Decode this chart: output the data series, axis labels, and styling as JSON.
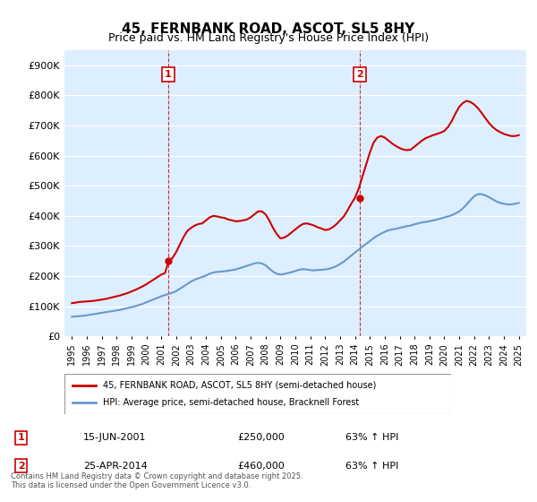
{
  "title": "45, FERNBANK ROAD, ASCOT, SL5 8HY",
  "subtitle": "Price paid vs. HM Land Registry's House Price Index (HPI)",
  "legend_label_red": "45, FERNBANK ROAD, ASCOT, SL5 8HY (semi-detached house)",
  "legend_label_blue": "HPI: Average price, semi-detached house, Bracknell Forest",
  "footnote": "Contains HM Land Registry data © Crown copyright and database right 2025.\nThis data is licensed under the Open Government Licence v3.0.",
  "transaction1_label": "1",
  "transaction1_date": "15-JUN-2001",
  "transaction1_price": "£250,000",
  "transaction1_hpi": "63% ↑ HPI",
  "transaction2_label": "2",
  "transaction2_date": "25-APR-2014",
  "transaction2_price": "£460,000",
  "transaction2_hpi": "63% ↑ HPI",
  "red_color": "#cc0000",
  "blue_color": "#6699cc",
  "dashed_line_color": "#cc0000",
  "background_color": "#ffffff",
  "plot_bg_color": "#ddeeff",
  "grid_color": "#ffffff",
  "ylim": [
    0,
    950000
  ],
  "yticks": [
    0,
    100000,
    200000,
    300000,
    400000,
    500000,
    600000,
    700000,
    800000,
    900000
  ],
  "ytick_labels": [
    "£0",
    "£100K",
    "£200K",
    "£300K",
    "£400K",
    "£500K",
    "£600K",
    "£700K",
    "£800K",
    "£900K"
  ],
  "transaction1_x": 2001.46,
  "transaction2_x": 2014.32,
  "hpi_series_x": [
    1995,
    1995.25,
    1995.5,
    1995.75,
    1996,
    1996.25,
    1996.5,
    1996.75,
    1997,
    1997.25,
    1997.5,
    1997.75,
    1998,
    1998.25,
    1998.5,
    1998.75,
    1999,
    1999.25,
    1999.5,
    1999.75,
    2000,
    2000.25,
    2000.5,
    2000.75,
    2001,
    2001.25,
    2001.5,
    2001.75,
    2002,
    2002.25,
    2002.5,
    2002.75,
    2003,
    2003.25,
    2003.5,
    2003.75,
    2004,
    2004.25,
    2004.5,
    2004.75,
    2005,
    2005.25,
    2005.5,
    2005.75,
    2006,
    2006.25,
    2006.5,
    2006.75,
    2007,
    2007.25,
    2007.5,
    2007.75,
    2008,
    2008.25,
    2008.5,
    2008.75,
    2009,
    2009.25,
    2009.5,
    2009.75,
    2010,
    2010.25,
    2010.5,
    2010.75,
    2011,
    2011.25,
    2011.5,
    2011.75,
    2012,
    2012.25,
    2012.5,
    2012.75,
    2013,
    2013.25,
    2013.5,
    2013.75,
    2014,
    2014.25,
    2014.5,
    2014.75,
    2015,
    2015.25,
    2015.5,
    2015.75,
    2016,
    2016.25,
    2016.5,
    2016.75,
    2017,
    2017.25,
    2017.5,
    2017.75,
    2018,
    2018.25,
    2018.5,
    2018.75,
    2019,
    2019.25,
    2019.5,
    2019.75,
    2020,
    2020.25,
    2020.5,
    2020.75,
    2021,
    2021.25,
    2021.5,
    2021.75,
    2022,
    2022.25,
    2022.5,
    2022.75,
    2023,
    2023.25,
    2023.5,
    2023.75,
    2024,
    2024.25,
    2024.5,
    2024.75,
    2025
  ],
  "hpi_series_y": [
    65000,
    66000,
    67000,
    68000,
    70000,
    72000,
    74000,
    76000,
    78000,
    80000,
    82000,
    84000,
    86000,
    88000,
    91000,
    94000,
    97000,
    100000,
    104000,
    108000,
    113000,
    118000,
    123000,
    128000,
    133000,
    137000,
    141000,
    145000,
    150000,
    158000,
    166000,
    174000,
    182000,
    188000,
    193000,
    197000,
    202000,
    208000,
    212000,
    214000,
    215000,
    216000,
    218000,
    220000,
    222000,
    226000,
    230000,
    234000,
    238000,
    242000,
    244000,
    242000,
    236000,
    225000,
    215000,
    208000,
    205000,
    207000,
    210000,
    213000,
    217000,
    221000,
    223000,
    222000,
    220000,
    219000,
    220000,
    221000,
    222000,
    224000,
    228000,
    233000,
    240000,
    248000,
    258000,
    268000,
    278000,
    288000,
    298000,
    307000,
    316000,
    326000,
    334000,
    341000,
    347000,
    352000,
    355000,
    357000,
    360000,
    363000,
    366000,
    368000,
    372000,
    375000,
    378000,
    380000,
    382000,
    385000,
    388000,
    391000,
    395000,
    398000,
    402000,
    408000,
    415000,
    425000,
    438000,
    452000,
    465000,
    472000,
    472000,
    468000,
    462000,
    455000,
    448000,
    443000,
    440000,
    438000,
    438000,
    440000,
    443000
  ],
  "price_series_x": [
    1995,
    1995.25,
    1995.5,
    1995.75,
    1996,
    1996.25,
    1996.5,
    1996.75,
    1997,
    1997.25,
    1997.5,
    1997.75,
    1998,
    1998.25,
    1998.5,
    1998.75,
    1999,
    1999.25,
    1999.5,
    1999.75,
    2000,
    2000.25,
    2000.5,
    2000.75,
    2001,
    2001.25,
    2001.5,
    2001.75,
    2002,
    2002.25,
    2002.5,
    2002.75,
    2003,
    2003.25,
    2003.5,
    2003.75,
    2004,
    2004.25,
    2004.5,
    2004.75,
    2005,
    2005.25,
    2005.5,
    2005.75,
    2006,
    2006.25,
    2006.5,
    2006.75,
    2007,
    2007.25,
    2007.5,
    2007.75,
    2008,
    2008.25,
    2008.5,
    2008.75,
    2009,
    2009.25,
    2009.5,
    2009.75,
    2010,
    2010.25,
    2010.5,
    2010.75,
    2011,
    2011.25,
    2011.5,
    2011.75,
    2012,
    2012.25,
    2012.5,
    2012.75,
    2013,
    2013.25,
    2013.5,
    2013.75,
    2014,
    2014.25,
    2014.5,
    2014.75,
    2015,
    2015.25,
    2015.5,
    2015.75,
    2016,
    2016.25,
    2016.5,
    2016.75,
    2017,
    2017.25,
    2017.5,
    2017.75,
    2018,
    2018.25,
    2018.5,
    2018.75,
    2019,
    2019.25,
    2019.5,
    2019.75,
    2020,
    2020.25,
    2020.5,
    2020.75,
    2021,
    2021.25,
    2021.5,
    2021.75,
    2022,
    2022.25,
    2022.5,
    2022.75,
    2023,
    2023.25,
    2023.5,
    2023.75,
    2024,
    2024.25,
    2024.5,
    2024.75,
    2025
  ],
  "price_series_y": [
    110000,
    112000,
    114000,
    115000,
    116000,
    117000,
    118000,
    120000,
    122000,
    124000,
    127000,
    130000,
    133000,
    136000,
    140000,
    144000,
    149000,
    154000,
    160000,
    166000,
    173000,
    181000,
    189000,
    197000,
    205000,
    210000,
    250000,
    260000,
    280000,
    305000,
    330000,
    350000,
    360000,
    368000,
    373000,
    375000,
    385000,
    395000,
    400000,
    398000,
    395000,
    393000,
    388000,
    385000,
    382000,
    383000,
    385000,
    388000,
    395000,
    405000,
    415000,
    415000,
    405000,
    385000,
    360000,
    340000,
    325000,
    328000,
    335000,
    345000,
    355000,
    365000,
    373000,
    375000,
    372000,
    368000,
    362000,
    358000,
    353000,
    355000,
    362000,
    372000,
    385000,
    398000,
    418000,
    440000,
    460000,
    490000,
    530000,
    570000,
    610000,
    643000,
    660000,
    665000,
    660000,
    650000,
    640000,
    632000,
    625000,
    620000,
    618000,
    620000,
    630000,
    640000,
    650000,
    658000,
    663000,
    668000,
    672000,
    676000,
    682000,
    695000,
    715000,
    740000,
    762000,
    775000,
    782000,
    778000,
    770000,
    758000,
    742000,
    725000,
    708000,
    695000,
    685000,
    678000,
    672000,
    668000,
    665000,
    665000,
    668000
  ]
}
